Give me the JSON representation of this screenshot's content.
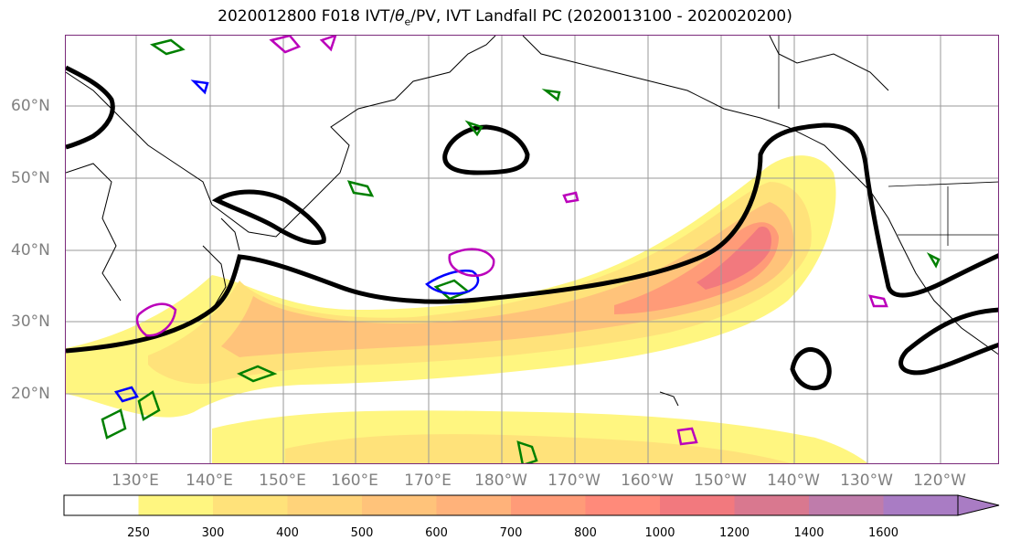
{
  "title_main": "2020012800 F018 IVT/",
  "title_theta": "θ",
  "title_sub": "e",
  "title_rest": "/PV, IVT Landfall PC (2020013100 - 2020020200)",
  "lat_labels": [
    "60°N",
    "50°N",
    "40°N",
    "30°N",
    "20°N"
  ],
  "lon_labels": [
    "130°E",
    "140°E",
    "150°E",
    "160°E",
    "170°E",
    "180°W",
    "170°W",
    "160°W",
    "150°W",
    "140°W",
    "130°W",
    "120°W"
  ],
  "colorbar": {
    "levels": [
      "250",
      "300",
      "400",
      "500",
      "600",
      "700",
      "800",
      "1000",
      "1200",
      "1400",
      "1600"
    ],
    "colors": [
      "#ffffff",
      "#fff680",
      "#ffe27a",
      "#ffd37a",
      "#ffc37a",
      "#ffb27a",
      "#ff9b78",
      "#ff8a7a",
      "#f2797e",
      "#d9788f",
      "#bf7cab",
      "#a97cc4"
    ],
    "extend": "max"
  },
  "map": {
    "gridlines": true,
    "contour_colors": {
      "pc_contour": "#000000",
      "pv_contour": "#008000",
      "theta_contour_a": "#0000ff",
      "theta_contour_b": "#bb00bb"
    }
  }
}
